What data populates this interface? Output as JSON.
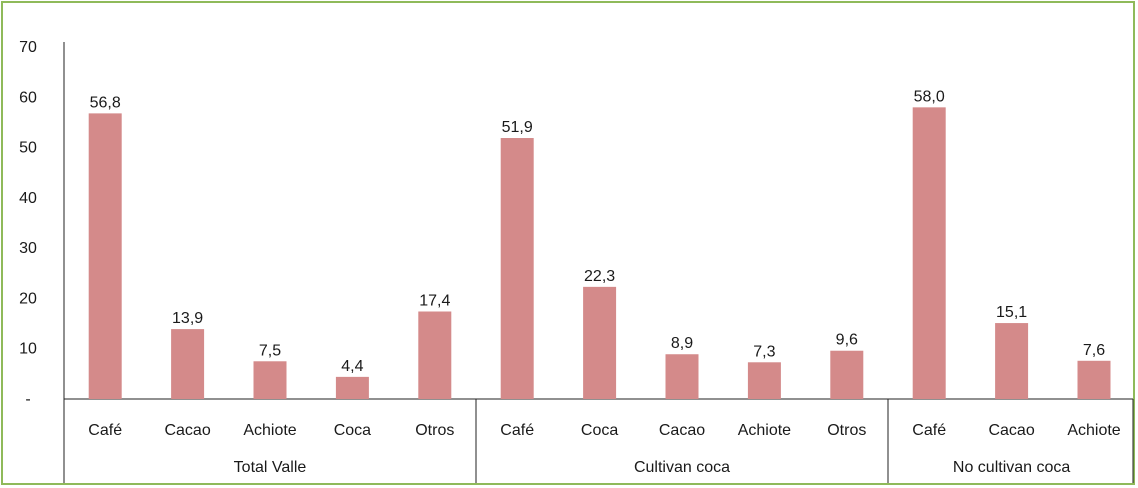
{
  "chart_data": {
    "type": "bar",
    "y_ticks": [
      "-",
      "10",
      "20",
      "30",
      "40",
      "50",
      "60",
      "70"
    ],
    "ylim": [
      0,
      70
    ],
    "bar_color": "#d48a8a",
    "frame_color": "#8fba5a",
    "groups": [
      {
        "name": "Total Valle",
        "categories": [
          "Café",
          "Cacao",
          "Achiote",
          "Coca",
          "Otros"
        ],
        "values": [
          56.8,
          13.9,
          7.5,
          4.4,
          17.4
        ],
        "labels": [
          "56,8",
          "13,9",
          "7,5",
          "4,4",
          "17,4"
        ]
      },
      {
        "name": "Cultivan coca",
        "categories": [
          "Café",
          "Coca",
          "Cacao",
          "Achiote",
          "Otros"
        ],
        "values": [
          51.9,
          22.3,
          8.9,
          7.3,
          9.6
        ],
        "labels": [
          "51,9",
          "22,3",
          "8,9",
          "7,3",
          "9,6"
        ]
      },
      {
        "name": "No cultivan coca",
        "categories": [
          "Café",
          "Cacao",
          "Achiote"
        ],
        "values": [
          58.0,
          15.1,
          7.6
        ],
        "labels": [
          "58,0",
          "15,1",
          "7,6"
        ]
      }
    ]
  }
}
